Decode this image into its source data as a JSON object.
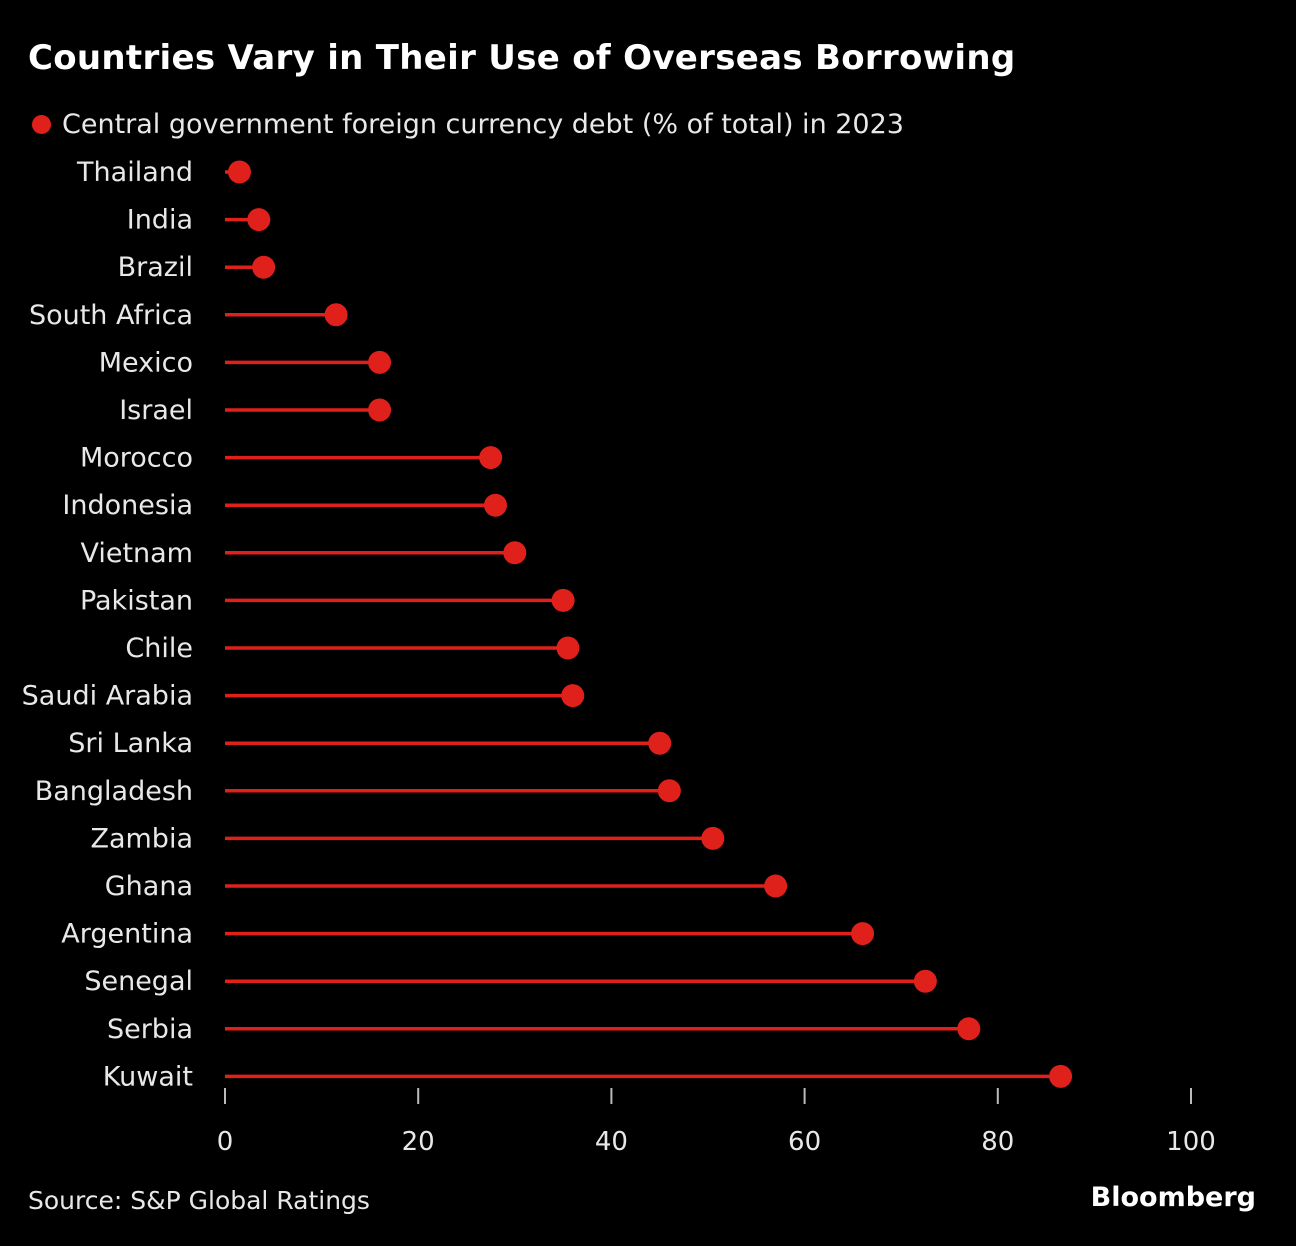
{
  "title": "Countries Vary in Their Use of Overseas Borrowing",
  "source": "Source: S&P Global Ratings",
  "brand": "Bloomberg",
  "colors": {
    "background": "#000000",
    "accent": "#e0201b",
    "text": "#ffffff",
    "axis": "#bbbbbb"
  },
  "chart_data": {
    "type": "lollipop",
    "orientation": "horizontal",
    "series": [
      {
        "name": "Central government foreign currency debt (% of total) in 2023",
        "values": [
          1.5,
          3.5,
          4,
          11.5,
          16,
          16,
          27.5,
          28,
          30,
          35,
          35.5,
          36,
          45,
          46,
          50.5,
          57,
          66,
          72.5,
          77,
          86.5
        ]
      }
    ],
    "categories": [
      "Thailand",
      "India",
      "Brazil",
      "South Africa",
      "Mexico",
      "Israel",
      "Morocco",
      "Indonesia",
      "Vietnam",
      "Pakistan",
      "Chile",
      "Saudi Arabia",
      "Sri Lanka",
      "Bangladesh",
      "Zambia",
      "Ghana",
      "Argentina",
      "Senegal",
      "Serbia",
      "Kuwait"
    ],
    "xlim": [
      0,
      100
    ],
    "xticks": [
      0,
      20,
      40,
      60,
      80,
      100
    ],
    "xlabel": "",
    "ylabel": "",
    "grid": false,
    "legend": "top-left"
  }
}
